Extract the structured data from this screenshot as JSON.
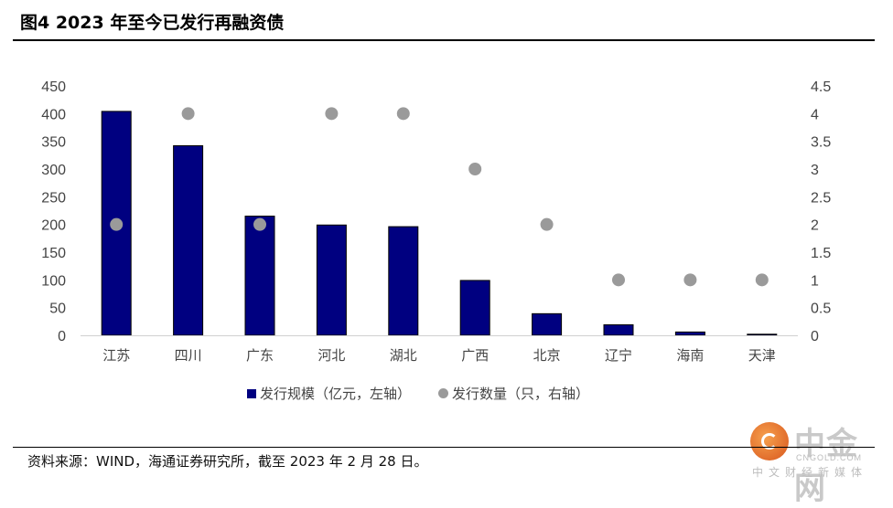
{
  "figure": {
    "title": "图4 2023 年至今已发行再融资债",
    "source": "资料来源：WIND，海通证券研究所，截至 2023 年 2 月 28 日。"
  },
  "chart_data": {
    "type": "bar",
    "categories": [
      "江苏",
      "四川",
      "广东",
      "河北",
      "湖北",
      "广西",
      "北京",
      "辽宁",
      "海南",
      "天津"
    ],
    "series": [
      {
        "name": "发行规模（亿元，左轴）",
        "type": "bar",
        "axis": "left",
        "color": "#000080",
        "values": [
          404,
          342,
          215,
          199,
          196,
          99,
          39,
          19,
          6,
          2
        ]
      },
      {
        "name": "发行数量（只，右轴）",
        "type": "scatter",
        "axis": "right",
        "color": "#9a9a9a",
        "values": [
          2,
          4,
          2,
          4,
          4,
          3,
          2,
          1,
          1,
          1
        ]
      }
    ],
    "y_left": {
      "min": 0,
      "max": 450,
      "ticks": [
        "0",
        "50",
        "100",
        "150",
        "200",
        "250",
        "300",
        "350",
        "400",
        "450"
      ]
    },
    "y_right": {
      "min": 0,
      "max": 4.5,
      "ticks": [
        "0",
        "0.5",
        "1",
        "1.5",
        "2",
        "2.5",
        "3",
        "3.5",
        "4",
        "4.5"
      ]
    },
    "grid": false,
    "legend_position": "bottom"
  },
  "watermark": {
    "main": "中金网",
    "url": "CNGOLD.COM",
    "sub": "中文财经新媒体"
  }
}
